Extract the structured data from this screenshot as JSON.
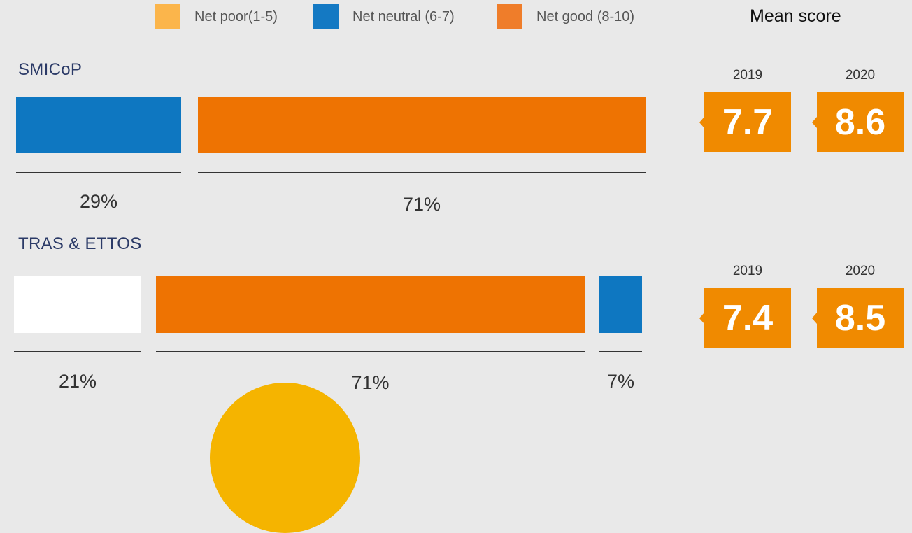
{
  "legend": {
    "items": [
      {
        "label": "Net poor(1-5)",
        "color": "#fbb54b"
      },
      {
        "label": "Net neutral (6-7)",
        "color": "#1479c3"
      },
      {
        "label": "Net good (8-10)",
        "color": "#ef7d2a"
      }
    ],
    "mean_title": "Mean score"
  },
  "chart_data": [
    {
      "type": "bar",
      "orientation": "horizontal-stacked",
      "title": "SMICoP",
      "segments": [
        {
          "label": "29%",
          "value": 29,
          "color": "#0e77c1"
        },
        {
          "label": "71%",
          "value": 71,
          "color": "#ee7302"
        }
      ]
    },
    {
      "type": "bar",
      "orientation": "horizontal-stacked",
      "title": "TRAS & ETTOS",
      "segments": [
        {
          "label": "21%",
          "value": 21,
          "color": "#ffffff"
        },
        {
          "label": "71%",
          "value": 71,
          "color": "#ee7302"
        },
        {
          "label": "7%",
          "value": 7,
          "color": "#0e77c1"
        }
      ]
    }
  ],
  "mean_scores": [
    {
      "year_a": "2019",
      "score_a": "7.7",
      "year_b": "2020",
      "score_b": "8.6"
    },
    {
      "year_a": "2019",
      "score_a": "7.4",
      "year_b": "2020",
      "score_b": "8.5"
    }
  ]
}
